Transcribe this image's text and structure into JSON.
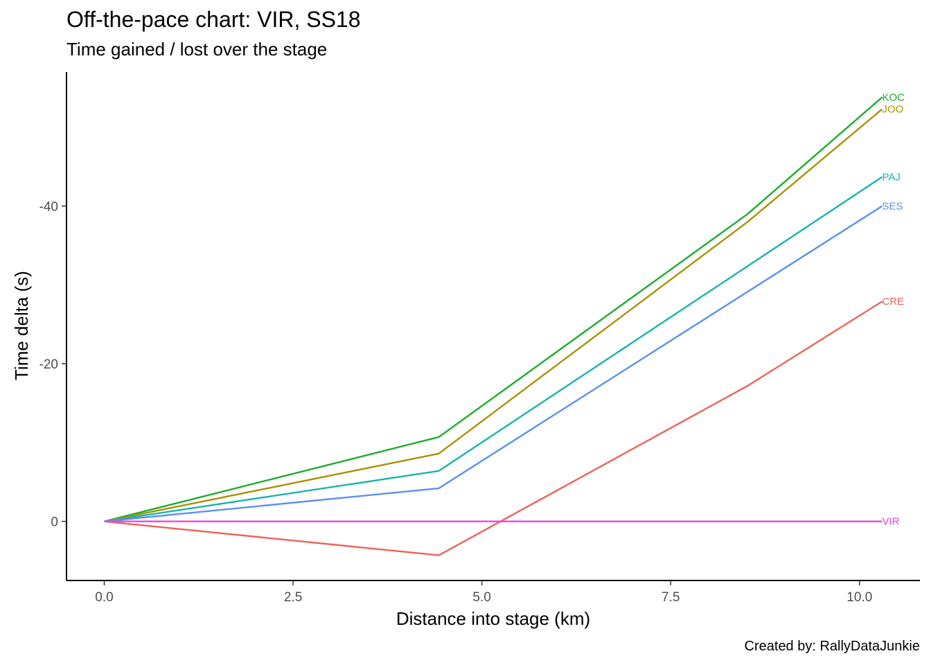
{
  "chart_data": {
    "type": "line",
    "title": "Off-the-pace chart: VIR, SS18",
    "subtitle": "Time gained / lost over the stage",
    "caption": "Created by: RallyDataJunkie",
    "xlabel": "Distance into stage (km)",
    "ylabel": "Time delta (s)",
    "xlim": [
      -0.5,
      10.8
    ],
    "ylim": [
      7.5,
      -57
    ],
    "y_reversed": true,
    "xticks": [
      0.0,
      2.5,
      5.0,
      7.5,
      10.0
    ],
    "xtick_labels": [
      "0.0",
      "2.5",
      "5.0",
      "7.5",
      "10.0"
    ],
    "yticks": [
      0,
      -20,
      -40
    ],
    "ytick_labels": [
      "0",
      "-20",
      "-40"
    ],
    "grid": false,
    "legend": "none (direct labels at line ends)",
    "series": [
      {
        "name": "KOC",
        "color": "#1aad2c",
        "x": [
          0,
          4.43,
          8.52,
          10.3
        ],
        "y": [
          0,
          -10.7,
          -39.0,
          -53.8
        ]
      },
      {
        "name": "JOO",
        "color": "#a89200",
        "x": [
          0,
          4.43,
          8.52,
          10.3
        ],
        "y": [
          0,
          -8.6,
          -38.0,
          -52.3
        ]
      },
      {
        "name": "PAJ",
        "color": "#18b3ab",
        "x": [
          0,
          4.43,
          10.3
        ],
        "y": [
          0,
          -6.4,
          -43.7
        ]
      },
      {
        "name": "SES",
        "color": "#5b8ff2",
        "x": [
          0,
          4.43,
          10.3
        ],
        "y": [
          0,
          -4.2,
          -40.0
        ]
      },
      {
        "name": "CRE",
        "color": "#ef6158",
        "x": [
          0,
          4.43,
          8.52,
          10.3
        ],
        "y": [
          0,
          4.3,
          -17.2,
          -27.9
        ]
      },
      {
        "name": "VIR",
        "color": "#ec45dc",
        "x": [
          0,
          10.3
        ],
        "y": [
          0,
          0
        ]
      }
    ]
  }
}
